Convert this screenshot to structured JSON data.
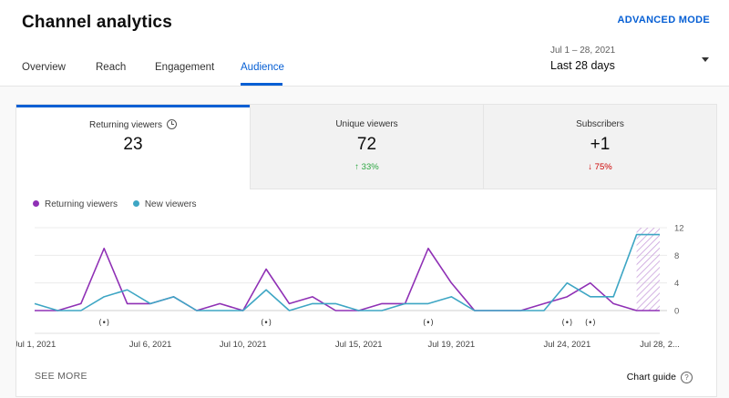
{
  "header": {
    "title": "Channel analytics",
    "advanced_mode": "ADVANCED MODE",
    "tabs": [
      {
        "label": "Overview",
        "active": false
      },
      {
        "label": "Reach",
        "active": false
      },
      {
        "label": "Engagement",
        "active": false
      },
      {
        "label": "Audience",
        "active": true
      }
    ],
    "date_range": {
      "sub": "Jul 1 – 28, 2021",
      "main": "Last 28 days"
    }
  },
  "metrics": [
    {
      "label": "Returning viewers",
      "value": "23",
      "delta": "",
      "icon": "clock-icon",
      "active": true
    },
    {
      "label": "Unique viewers",
      "value": "72",
      "delta": "↑ 33%",
      "direction": "up"
    },
    {
      "label": "Subscribers",
      "value": "+1",
      "delta": "↓ 75%",
      "direction": "down"
    }
  ],
  "legend": [
    {
      "label": "Returning viewers",
      "color": "#8f30b5"
    },
    {
      "label": "New viewers",
      "color": "#3ea6c4"
    }
  ],
  "footer": {
    "see_more": "SEE MORE",
    "chart_guide": "Chart guide",
    "help_glyph": "?"
  },
  "chart_data": {
    "type": "line",
    "x": [
      1,
      2,
      3,
      4,
      5,
      6,
      7,
      8,
      9,
      10,
      11,
      12,
      13,
      14,
      15,
      16,
      17,
      18,
      19,
      20,
      21,
      22,
      23,
      24,
      25,
      26,
      27,
      28
    ],
    "x_tick_labels": [
      {
        "day": 1,
        "label": "Jul 1, 2021"
      },
      {
        "day": 6,
        "label": "Jul 6, 2021"
      },
      {
        "day": 10,
        "label": "Jul 10, 2021"
      },
      {
        "day": 15,
        "label": "Jul 15, 2021"
      },
      {
        "day": 19,
        "label": "Jul 19, 2021"
      },
      {
        "day": 24,
        "label": "Jul 24, 2021"
      },
      {
        "day": 28,
        "label": "Jul 28, 2..."
      }
    ],
    "y_ticks": [
      0,
      4,
      8,
      12
    ],
    "ylim": [
      0,
      12
    ],
    "series": [
      {
        "name": "Returning viewers",
        "color": "#8f30b5",
        "values": [
          0,
          0,
          1,
          9,
          1,
          1,
          2,
          0,
          1,
          0,
          6,
          1,
          2,
          0,
          0,
          1,
          1,
          9,
          4,
          0,
          0,
          0,
          1,
          2,
          4,
          1,
          0,
          0
        ]
      },
      {
        "name": "New viewers",
        "color": "#3ea6c4",
        "values": [
          1,
          0,
          0,
          2,
          3,
          1,
          2,
          0,
          0,
          0,
          3,
          0,
          1,
          1,
          0,
          0,
          1,
          1,
          2,
          0,
          0,
          0,
          0,
          4,
          2,
          2,
          11,
          11
        ]
      }
    ],
    "live_stream_days": [
      4,
      11,
      18,
      24,
      25
    ],
    "live_icon": "live-stream-icon",
    "incomplete_region_from_day": 27,
    "grid": true
  }
}
